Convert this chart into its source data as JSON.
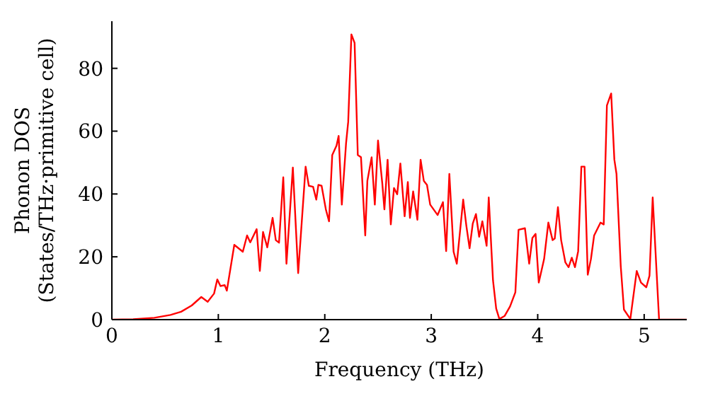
{
  "chart_data": {
    "type": "line",
    "xlabel": "Frequency (THz)",
    "ylabel": "Phonon DOS\n(States/THz·primitive cell)",
    "x": [
      0,
      0.2,
      0.4,
      0.55,
      0.65,
      0.75,
      0.84,
      0.9,
      0.96,
      0.99,
      1.02,
      1.06,
      1.08,
      1.15,
      1.23,
      1.27,
      1.3,
      1.36,
      1.39,
      1.42,
      1.46,
      1.51,
      1.54,
      1.57,
      1.61,
      1.64,
      1.7,
      1.75,
      1.82,
      1.85,
      1.89,
      1.92,
      1.94,
      1.97,
      2.01,
      2.04,
      2.07,
      2.11,
      2.13,
      2.16,
      2.2,
      2.22,
      2.25,
      2.28,
      2.31,
      2.34,
      2.38,
      2.4,
      2.44,
      2.47,
      2.5,
      2.54,
      2.56,
      2.59,
      2.62,
      2.65,
      2.68,
      2.71,
      2.75,
      2.78,
      2.8,
      2.83,
      2.87,
      2.9,
      2.93,
      2.96,
      2.99,
      3.06,
      3.11,
      3.14,
      3.17,
      3.21,
      3.24,
      3.3,
      3.33,
      3.36,
      3.39,
      3.42,
      3.45,
      3.48,
      3.52,
      3.54,
      3.58,
      3.61,
      3.64,
      3.69,
      3.74,
      3.79,
      3.82,
      3.88,
      3.92,
      3.95,
      3.98,
      4.01,
      4.06,
      4.1,
      4.14,
      4.16,
      4.19,
      4.22,
      4.26,
      4.29,
      4.32,
      4.35,
      4.38,
      4.41,
      4.44,
      4.47,
      4.5,
      4.53,
      4.59,
      4.62,
      4.65,
      4.69,
      4.72,
      4.74,
      4.78,
      4.81,
      4.87,
      4.93,
      4.97,
      5.02,
      5.05,
      5.08,
      5.14,
      5.4
    ],
    "series": [
      {
        "color": "#ff0000",
        "values": [
          0,
          0.1,
          0.6,
          1.5,
          2.5,
          4.5,
          7.2,
          5.7,
          8.3,
          12.8,
          10.7,
          11,
          9.2,
          23.8,
          21.6,
          26.8,
          24.6,
          28.8,
          15.5,
          27.9,
          23,
          32.4,
          25.3,
          24.5,
          45.3,
          17.8,
          48.4,
          14.8,
          48.7,
          42.6,
          42.3,
          38.2,
          42.9,
          42.6,
          35.1,
          31.3,
          52.4,
          55.4,
          58.5,
          36.6,
          56.2,
          63,
          90.8,
          88.1,
          52.4,
          51.7,
          26.8,
          44.2,
          51.7,
          36.6,
          57,
          43.4,
          35.1,
          50.9,
          30.3,
          41.9,
          39.9,
          49.7,
          32.9,
          43.8,
          32.4,
          40.8,
          31.8,
          50.9,
          44.2,
          42.9,
          36.6,
          33.3,
          37.4,
          21.8,
          46.4,
          21.6,
          17.8,
          38.2,
          29.8,
          22.7,
          30.6,
          33.6,
          26.4,
          31.3,
          23.5,
          38.9,
          12.5,
          3.5,
          0.2,
          1.2,
          4.2,
          8.7,
          28.6,
          29.1,
          17.8,
          26,
          27.3,
          11.8,
          19.3,
          30.9,
          25.3,
          25.8,
          35.8,
          25.3,
          18.2,
          16.7,
          19.7,
          16.7,
          21.8,
          48.7,
          48.7,
          14.3,
          19.3,
          26.8,
          30.9,
          30.3,
          68.2,
          72,
          50.9,
          46.4,
          17,
          3.2,
          0.2,
          15.5,
          11.8,
          10.3,
          14,
          38.9,
          0,
          0
        ]
      }
    ],
    "xlim": [
      0,
      5.4
    ],
    "xticks": [
      0,
      1,
      2,
      3,
      4,
      5
    ],
    "ylim": [
      0,
      95
    ],
    "yticks": [
      0,
      20,
      40,
      60,
      80
    ],
    "grid": false,
    "legend": false,
    "marker": "none",
    "line_style": "solid"
  }
}
